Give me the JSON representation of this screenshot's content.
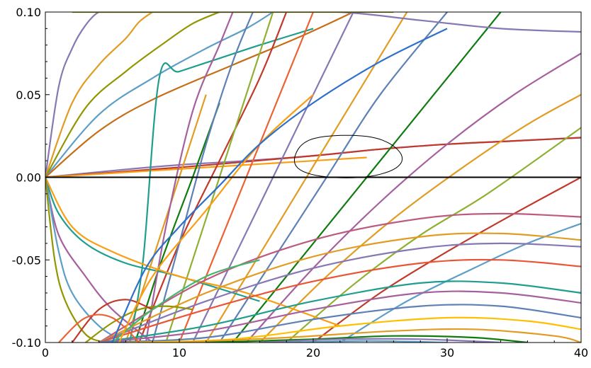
{
  "chart_data": {
    "type": "line",
    "title": "",
    "xlabel": "",
    "ylabel": "",
    "xlim": [
      0,
      40
    ],
    "ylim": [
      -0.1,
      0.1
    ],
    "grid": false,
    "legend": "none",
    "x_ticks": [
      0,
      10,
      20,
      30,
      40
    ],
    "x_tick_labels": [
      "0",
      "10",
      "20",
      "30",
      "40"
    ],
    "y_ticks": [
      -0.1,
      -0.05,
      0.0,
      0.05,
      0.1
    ],
    "y_tick_labels": [
      "-0.10",
      "-0.05",
      "0.00",
      "0.05",
      "0.10"
    ],
    "reference_line": {
      "y": 0.0,
      "color": "#000000"
    },
    "annotation": {
      "shape": "hand-drawn-ellipse",
      "center": [
        22.5,
        0.0125
      ],
      "radius_x": 4,
      "radius_y": 0.014
    },
    "palette": [
      "#5e81b5",
      "#e19c24",
      "#8fb032",
      "#eb6235",
      "#8778b3",
      "#c56e1a",
      "#5d9ec7",
      "#ffbf00",
      "#a5609d",
      "#929600",
      "#e95536",
      "#6685d9",
      "#f89f13",
      "#bc5b80",
      "#47b66d",
      "#1f9e8e",
      "#107c10",
      "#c0392b",
      "#2f70c9",
      "#9b59b6"
    ],
    "series": [
      {
        "color": "#8778b3",
        "x": [
          0,
          1,
          2,
          3,
          4,
          5
        ],
        "y": [
          0,
          0.055,
          0.078,
          0.092,
          0.1,
          0.1
        ]
      },
      {
        "color": "#e19c24",
        "x": [
          0,
          2,
          4,
          6,
          7,
          8
        ],
        "y": [
          0,
          0.045,
          0.068,
          0.084,
          0.094,
          0.1
        ]
      },
      {
        "color": "#929600",
        "x": [
          0,
          3,
          6,
          9,
          11,
          13
        ],
        "y": [
          0,
          0.042,
          0.064,
          0.082,
          0.093,
          0.1
        ]
      },
      {
        "color": "#5d9ec7",
        "x": [
          0,
          4,
          8,
          12,
          15,
          17
        ],
        "y": [
          0,
          0.038,
          0.06,
          0.078,
          0.09,
          0.1
        ]
      },
      {
        "color": "#c56e1a",
        "x": [
          0,
          4,
          8,
          14,
          19,
          23
        ],
        "y": [
          0,
          0.028,
          0.047,
          0.068,
          0.085,
          0.1
        ]
      },
      {
        "color": "#8778b3",
        "x": [
          0,
          5,
          10,
          15,
          20,
          25,
          30,
          35,
          40
        ],
        "y": [
          0,
          0.004,
          0.0075,
          0.01,
          0.013,
          0.017,
          0.02,
          0.022,
          0.024
        ]
      },
      {
        "color": "#c0392b",
        "x": [
          0,
          10,
          20,
          25,
          30,
          35,
          40
        ],
        "y": [
          0,
          0.006,
          0.013,
          0.017,
          0.02,
          0.022,
          0.024
        ]
      },
      {
        "color": "#f89f13",
        "x": [
          0,
          8,
          16,
          20,
          24
        ],
        "y": [
          0,
          0.004,
          0.008,
          0.01,
          0.012
        ]
      },
      {
        "color": "#e19c24",
        "x": [
          6,
          8,
          10,
          12
        ],
        "y": [
          -0.1,
          -0.05,
          0.0,
          0.05
        ]
      },
      {
        "color": "#1f9e8e",
        "x": [
          6.3,
          7.3,
          8.5,
          10,
          13,
          16,
          20
        ],
        "y": [
          -0.1,
          -0.05,
          0.06,
          0.064,
          0.072,
          0.08,
          0.09
        ]
      },
      {
        "color": "#107c10",
        "x": [
          6.7,
          8.7,
          11,
          13
        ],
        "y": [
          -0.1,
          -0.05,
          0.0,
          0.045
        ]
      },
      {
        "color": "#c0392b",
        "x": [
          7,
          10,
          13,
          16,
          18
        ],
        "y": [
          -0.1,
          -0.04,
          0.01,
          0.06,
          0.1
        ]
      },
      {
        "color": "#a5609d",
        "x": [
          7.5,
          9,
          11,
          13,
          14
        ],
        "y": [
          -0.1,
          -0.03,
          0.04,
          0.08,
          0.1
        ]
      },
      {
        "color": "#5e81b5",
        "x": [
          8,
          10,
          12,
          14,
          15.5
        ],
        "y": [
          -0.1,
          -0.04,
          0.02,
          0.07,
          0.1
        ]
      },
      {
        "color": "#8fb032",
        "x": [
          9,
          11,
          13,
          15,
          17
        ],
        "y": [
          -0.1,
          -0.05,
          0.0,
          0.05,
          0.1
        ]
      },
      {
        "color": "#eb6235",
        "x": [
          10,
          12,
          14,
          16,
          18,
          20
        ],
        "y": [
          -0.1,
          -0.06,
          -0.02,
          0.02,
          0.06,
          0.1
        ]
      },
      {
        "color": "#8778b3",
        "x": [
          11,
          14,
          17,
          20,
          23
        ],
        "y": [
          -0.1,
          -0.05,
          0.0,
          0.05,
          0.1
        ]
      },
      {
        "color": "#e19c24",
        "x": [
          12,
          15,
          18,
          21,
          24,
          27
        ],
        "y": [
          -0.1,
          -0.06,
          -0.02,
          0.02,
          0.06,
          0.1
        ]
      },
      {
        "color": "#5e81b5",
        "x": [
          13,
          17,
          21,
          25,
          30
        ],
        "y": [
          -0.1,
          -0.05,
          0.0,
          0.05,
          0.1
        ]
      },
      {
        "color": "#107c10",
        "x": [
          14,
          18,
          22,
          26,
          30,
          34
        ],
        "y": [
          -0.1,
          -0.06,
          -0.02,
          0.02,
          0.06,
          0.1
        ]
      },
      {
        "color": "#a5609d",
        "x": [
          15,
          20,
          25,
          30,
          35,
          40
        ],
        "y": [
          -0.1,
          -0.055,
          -0.015,
          0.02,
          0.05,
          0.075
        ]
      },
      {
        "color": "#e19c24",
        "x": [
          16,
          21,
          26,
          31,
          36,
          40
        ],
        "y": [
          -0.1,
          -0.06,
          -0.025,
          0.005,
          0.032,
          0.05
        ]
      },
      {
        "color": "#8fb032",
        "x": [
          18,
          23,
          28,
          33,
          40
        ],
        "y": [
          -0.1,
          -0.065,
          -0.035,
          -0.01,
          0.03
        ]
      },
      {
        "color": "#c0392b",
        "x": [
          20,
          25,
          30,
          35,
          40
        ],
        "y": [
          -0.1,
          -0.07,
          -0.045,
          -0.022,
          0.0
        ]
      },
      {
        "color": "#5d9ec7",
        "x": [
          22,
          27,
          32,
          36,
          40
        ],
        "y": [
          -0.1,
          -0.075,
          -0.055,
          -0.04,
          -0.028
        ]
      },
      {
        "color": "#8778b3",
        "x": [
          4,
          10,
          16,
          22,
          28,
          34,
          40
        ],
        "y": [
          0.1,
          0.1,
          0.1,
          0.1,
          0.095,
          0.09,
          0.088
        ]
      },
      {
        "color": "#929600",
        "x": [
          2,
          8,
          14,
          18,
          22,
          26
        ],
        "y": [
          0.1,
          0.1,
          0.1,
          0.1,
          0.1,
          0.1
        ]
      },
      {
        "color": "#1f9e8e",
        "x": [
          0,
          1,
          3,
          6,
          10,
          16
        ],
        "y": [
          0,
          -0.022,
          -0.04,
          -0.052,
          -0.06,
          -0.075
        ]
      },
      {
        "color": "#f89f13",
        "x": [
          0,
          2,
          5,
          10,
          15,
          22
        ],
        "y": [
          0,
          -0.03,
          -0.045,
          -0.06,
          -0.07,
          -0.09
        ]
      },
      {
        "color": "#a5609d",
        "x": [
          0,
          1,
          3,
          5,
          8
        ],
        "y": [
          0,
          -0.035,
          -0.06,
          -0.08,
          -0.1
        ]
      },
      {
        "color": "#5d9ec7",
        "x": [
          0,
          1,
          2,
          4,
          6
        ],
        "y": [
          0,
          -0.045,
          -0.07,
          -0.09,
          -0.1
        ]
      },
      {
        "color": "#929600",
        "x": [
          0,
          0.7,
          1.5,
          3,
          4.5
        ],
        "y": [
          0,
          -0.05,
          -0.075,
          -0.095,
          -0.1
        ]
      },
      {
        "color": "#bc5b80",
        "x": [
          4,
          12,
          20,
          28,
          34,
          40
        ],
        "y": [
          -0.1,
          -0.062,
          -0.038,
          -0.025,
          -0.022,
          -0.024
        ]
      },
      {
        "color": "#e19c24",
        "x": [
          4,
          12,
          20,
          28,
          34,
          40
        ],
        "y": [
          -0.1,
          -0.07,
          -0.048,
          -0.036,
          -0.034,
          -0.038
        ]
      },
      {
        "color": "#8778b3",
        "x": [
          4,
          12,
          20,
          28,
          34,
          40
        ],
        "y": [
          -0.1,
          -0.075,
          -0.055,
          -0.043,
          -0.04,
          -0.042
        ]
      },
      {
        "color": "#e95536",
        "x": [
          4,
          12,
          20,
          28,
          34,
          40
        ],
        "y": [
          -0.1,
          -0.08,
          -0.063,
          -0.052,
          -0.05,
          -0.054
        ]
      },
      {
        "color": "#1f9e8e",
        "x": [
          4,
          12,
          20,
          28,
          34,
          40
        ],
        "y": [
          -0.1,
          -0.09,
          -0.075,
          -0.064,
          -0.064,
          -0.07
        ]
      },
      {
        "color": "#a5609d",
        "x": [
          4,
          12,
          20,
          28,
          34,
          40
        ],
        "y": [
          -0.1,
          -0.093,
          -0.08,
          -0.07,
          -0.07,
          -0.076
        ]
      },
      {
        "color": "#5e81b5",
        "x": [
          4,
          12,
          20,
          28,
          34,
          40
        ],
        "y": [
          -0.1,
          -0.097,
          -0.086,
          -0.078,
          -0.078,
          -0.085
        ]
      },
      {
        "color": "#ffbf00",
        "x": [
          6,
          14,
          22,
          30,
          36,
          40
        ],
        "y": [
          -0.1,
          -0.098,
          -0.09,
          -0.085,
          -0.087,
          -0.092
        ]
      },
      {
        "color": "#e19c24",
        "x": [
          10,
          18,
          26,
          32,
          38,
          40
        ],
        "y": [
          -0.1,
          -0.097,
          -0.093,
          -0.092,
          -0.096,
          -0.1
        ]
      },
      {
        "color": "#107c10",
        "x": [
          12,
          20,
          26,
          32,
          36
        ],
        "y": [
          -0.1,
          -0.098,
          -0.096,
          -0.097,
          -0.1
        ]
      },
      {
        "color": "#8778b3",
        "x": [
          16,
          22,
          28,
          34
        ],
        "y": [
          -0.1,
          -0.098,
          -0.098,
          -0.1
        ]
      },
      {
        "color": "#5d9ec7",
        "x": [
          18,
          24,
          30
        ],
        "y": [
          -0.1,
          -0.099,
          -0.1
        ]
      },
      {
        "color": "#929600",
        "x": [
          3,
          5,
          7,
          9,
          11
        ],
        "y": [
          -0.1,
          -0.088,
          -0.08,
          -0.078,
          -0.08
        ]
      },
      {
        "color": "#c0392b",
        "x": [
          2,
          4,
          6,
          8
        ],
        "y": [
          -0.1,
          -0.08,
          -0.074,
          -0.08
        ]
      },
      {
        "color": "#eb6235",
        "x": [
          1,
          3,
          5,
          7
        ],
        "y": [
          -0.1,
          -0.085,
          -0.085,
          -0.1
        ]
      },
      {
        "color": "#47b66d",
        "x": [
          5,
          8,
          12,
          16
        ],
        "y": [
          -0.1,
          -0.08,
          -0.06,
          -0.05
        ]
      },
      {
        "color": "#f89f13",
        "x": [
          5.5,
          8,
          12,
          16,
          20
        ],
        "y": [
          -0.1,
          -0.06,
          -0.02,
          0.02,
          0.05
        ]
      },
      {
        "color": "#2f70c9",
        "x": [
          5,
          7.5,
          10,
          13,
          16,
          20,
          25,
          30
        ],
        "y": [
          -0.1,
          -0.055,
          -0.03,
          -0.005,
          0.02,
          0.045,
          0.07,
          0.09
        ]
      }
    ]
  }
}
